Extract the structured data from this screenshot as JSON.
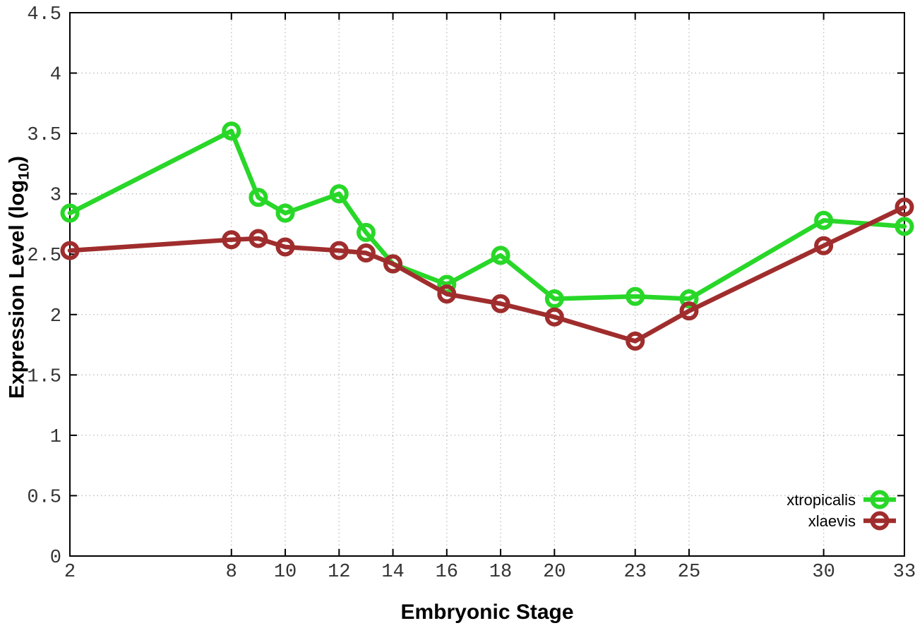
{
  "figure": {
    "xlabel": "Embryonic Stage",
    "ylabel_parts": {
      "prefix": "Expression Level (log",
      "sub": "10",
      "suffix": ")"
    }
  },
  "colors": {
    "background": "#ffffff",
    "axis": "#000000",
    "grid": "#bbbbbb",
    "tick_text": "#333333",
    "xtropicalis": "#28d728",
    "xlaevis": "#a02d2d"
  },
  "chart_data": {
    "type": "line",
    "title": "",
    "xlabel": "Embryonic Stage",
    "ylabel": "Expression Level (log10)",
    "x": [
      2,
      8,
      9,
      10,
      12,
      13,
      14,
      16,
      18,
      20,
      23,
      25,
      30,
      33
    ],
    "series": [
      {
        "name": "xtropicalis",
        "color": "#28d728",
        "marker": "open-circle",
        "values": [
          2.84,
          3.52,
          2.97,
          2.84,
          3.0,
          2.68,
          2.42,
          2.25,
          2.49,
          2.13,
          2.15,
          2.13,
          2.78,
          2.73
        ]
      },
      {
        "name": "xlaevis",
        "color": "#a02d2d",
        "marker": "open-circle",
        "values": [
          2.53,
          2.62,
          2.63,
          2.56,
          2.53,
          2.51,
          2.42,
          2.17,
          2.09,
          1.98,
          1.78,
          2.03,
          2.57,
          2.89
        ]
      }
    ],
    "xlim": [
      2,
      33
    ],
    "ylim": [
      0,
      4.5
    ],
    "x_ticks": [
      2,
      8,
      10,
      12,
      14,
      16,
      18,
      20,
      23,
      25,
      30,
      33
    ],
    "x_tick_labels": [
      "2",
      "8",
      "10",
      "12",
      "14",
      "16",
      "18",
      "20",
      "23",
      "25",
      "30",
      "33"
    ],
    "y_ticks": [
      0,
      0.5,
      1,
      1.5,
      2,
      2.5,
      3,
      3.5,
      4,
      4.5
    ],
    "y_tick_labels": [
      "0",
      "0.5",
      "1",
      "1.5",
      "2",
      "2.5",
      "3",
      "3.5",
      "4",
      "4.5"
    ],
    "grid": true,
    "legend_position": "inside-bottom-right"
  }
}
